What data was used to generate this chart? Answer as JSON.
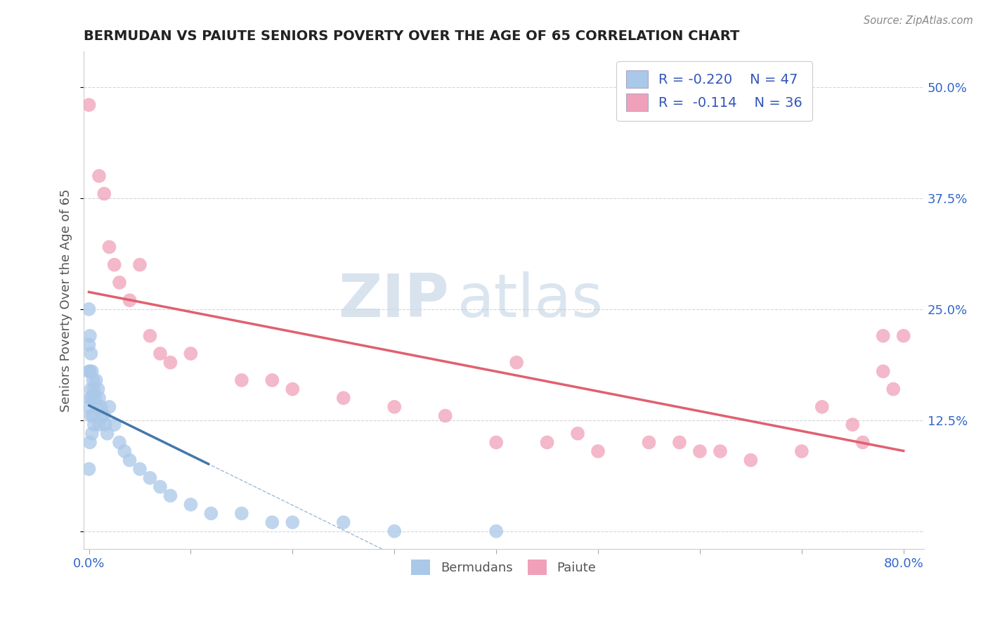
{
  "title": "BERMUDAN VS PAIUTE SENIORS POVERTY OVER THE AGE OF 65 CORRELATION CHART",
  "source": "Source: ZipAtlas.com",
  "xlabel": "",
  "ylabel": "Seniors Poverty Over the Age of 65",
  "xlim": [
    -0.005,
    0.82
  ],
  "ylim": [
    -0.02,
    0.54
  ],
  "xticks": [
    0.0,
    0.1,
    0.2,
    0.3,
    0.4,
    0.5,
    0.6,
    0.7,
    0.8
  ],
  "xticklabels": [
    "0.0%",
    "",
    "",
    "",
    "",
    "",
    "",
    "",
    "80.0%"
  ],
  "yticks": [
    0.0,
    0.125,
    0.25,
    0.375,
    0.5
  ],
  "yticklabels": [
    "",
    "12.5%",
    "25.0%",
    "37.5%",
    "50.0%"
  ],
  "bermudan_color": "#aac8e8",
  "paiute_color": "#f0a0b8",
  "bermudan_line_color": "#4477aa",
  "paiute_line_color": "#e06070",
  "legend_r_bermudan": "R = -0.220",
  "legend_n_bermudan": "N = 47",
  "legend_r_paiute": "R =  -0.114",
  "legend_n_paiute": "N = 36",
  "watermark_zip": "ZIP",
  "watermark_atlas": "atlas",
  "title_color": "#222222",
  "axis_label_color": "#555555",
  "tick_color": "#3366cc",
  "grid_color": "#cccccc",
  "background_color": "#ffffff",
  "bermudan_x": [
    0.0,
    0.0,
    0.0,
    0.0,
    0.0,
    0.001,
    0.001,
    0.001,
    0.001,
    0.002,
    0.002,
    0.002,
    0.003,
    0.003,
    0.003,
    0.004,
    0.004,
    0.005,
    0.005,
    0.006,
    0.007,
    0.008,
    0.009,
    0.01,
    0.01,
    0.012,
    0.013,
    0.015,
    0.016,
    0.018,
    0.02,
    0.025,
    0.03,
    0.035,
    0.04,
    0.05,
    0.06,
    0.07,
    0.08,
    0.1,
    0.12,
    0.15,
    0.18,
    0.2,
    0.25,
    0.3,
    0.4
  ],
  "bermudan_y": [
    0.25,
    0.21,
    0.18,
    0.14,
    0.07,
    0.22,
    0.18,
    0.15,
    0.1,
    0.2,
    0.16,
    0.13,
    0.18,
    0.15,
    0.11,
    0.17,
    0.13,
    0.16,
    0.12,
    0.15,
    0.17,
    0.14,
    0.16,
    0.15,
    0.12,
    0.14,
    0.13,
    0.13,
    0.12,
    0.11,
    0.14,
    0.12,
    0.1,
    0.09,
    0.08,
    0.07,
    0.06,
    0.05,
    0.04,
    0.03,
    0.02,
    0.02,
    0.01,
    0.01,
    0.01,
    0.0,
    0.0
  ],
  "paiute_x": [
    0.0,
    0.01,
    0.015,
    0.02,
    0.025,
    0.03,
    0.04,
    0.05,
    0.06,
    0.07,
    0.08,
    0.1,
    0.15,
    0.18,
    0.2,
    0.25,
    0.3,
    0.35,
    0.4,
    0.42,
    0.45,
    0.48,
    0.5,
    0.55,
    0.58,
    0.6,
    0.62,
    0.65,
    0.7,
    0.72,
    0.75,
    0.76,
    0.78,
    0.78,
    0.79,
    0.8
  ],
  "paiute_y": [
    0.48,
    0.4,
    0.38,
    0.32,
    0.3,
    0.28,
    0.26,
    0.3,
    0.22,
    0.2,
    0.19,
    0.2,
    0.17,
    0.17,
    0.16,
    0.15,
    0.14,
    0.13,
    0.1,
    0.19,
    0.1,
    0.11,
    0.09,
    0.1,
    0.1,
    0.09,
    0.09,
    0.08,
    0.09,
    0.14,
    0.12,
    0.1,
    0.22,
    0.18,
    0.16,
    0.22
  ]
}
